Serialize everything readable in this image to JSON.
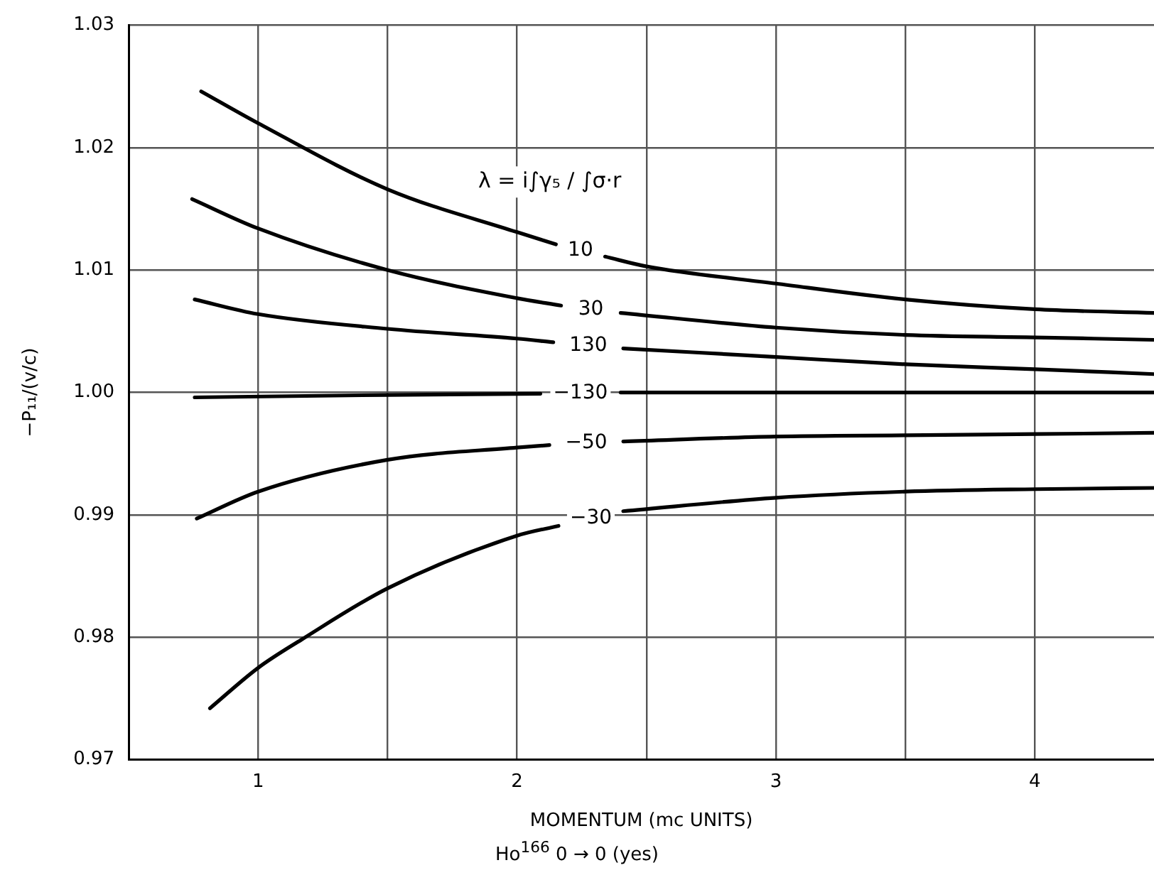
{
  "chart_data": {
    "type": "line",
    "xlabel": "MOMENTUM (mc UNITS)",
    "ylabel": "−P₁₁/(v/c)",
    "annotations": [
      "λ = i∫γ₅ / ∫σ·r",
      "Ho$^{166}$ 0 → 0 (yes)"
    ],
    "xlim": [
      0.5,
      4.46
    ],
    "xticks": [
      {
        "value": 0.5,
        "label": null
      },
      1,
      {
        "value": 1.5,
        "label": null
      },
      2,
      {
        "value": 2.5,
        "label": null
      },
      3,
      {
        "value": 3.5,
        "label": null
      },
      4
    ],
    "ylim": [
      0.97,
      1.03
    ],
    "yticks": [
      0.97,
      0.98,
      0.99,
      {
        "value": 1,
        "label": "1.00"
      },
      1.01,
      1.02,
      1.03
    ],
    "grid": true,
    "legend": false,
    "marker": "none",
    "line_style": "solid",
    "series": [
      {
        "name": "10",
        "color": "#000000",
        "x": [
          0.78,
          1.0,
          1.5,
          2.0,
          2.15,
          2.245,
          2.34,
          2.5,
          3.0,
          3.5,
          4.0,
          4.46
        ],
        "values": [
          1.0246,
          1.022,
          1.0166,
          1.0131,
          1.0121,
          null,
          1.0111,
          1.0103,
          1.0089,
          1.0076,
          1.0068,
          1.0065
        ]
      },
      {
        "name": "30",
        "color": "#000000",
        "x": [
          0.745,
          1.0,
          1.5,
          2.0,
          2.17,
          2.285,
          2.4,
          3.0,
          3.5,
          4.0,
          4.46
        ],
        "values": [
          1.0158,
          1.0134,
          1.01,
          1.0077,
          1.0071,
          null,
          1.0065,
          1.0053,
          1.0047,
          1.0045,
          1.0043
        ]
      },
      {
        "name": "130",
        "color": "#000000",
        "x": [
          0.755,
          1.0,
          1.5,
          2.0,
          2.14,
          2.275,
          2.41,
          3.0,
          3.5,
          4.0,
          4.46
        ],
        "values": [
          1.0076,
          1.0064,
          1.0052,
          1.0044,
          1.0041,
          null,
          1.0036,
          1.0029,
          1.0023,
          1.0019,
          1.0015
        ]
      },
      {
        "name": "−130",
        "color": "#000000",
        "x": [
          0.755,
          1.5,
          2.09,
          2.245,
          2.4,
          3.0,
          4.46
        ],
        "values": [
          0.9996,
          0.9998,
          0.9999,
          null,
          1.0,
          1.0,
          1.0
        ]
      },
      {
        "name": "−50",
        "color": "#000000",
        "x": [
          0.763,
          1.0,
          1.5,
          2.0,
          2.125,
          2.27,
          2.41,
          3.0,
          3.5,
          4.0,
          4.46
        ],
        "values": [
          0.9897,
          0.9919,
          0.9945,
          0.9955,
          0.9957,
          null,
          0.996,
          0.9964,
          0.9965,
          0.9966,
          0.9967
        ]
      },
      {
        "name": "−30",
        "color": "#000000",
        "x": [
          0.814,
          1.0,
          1.167,
          1.5,
          2.0,
          2.16,
          2.285,
          2.41,
          3.0,
          3.5,
          4.0,
          4.46
        ],
        "values": [
          0.9742,
          0.9775,
          0.9798,
          0.984,
          0.9883,
          0.9891,
          null,
          0.9903,
          0.9914,
          0.9919,
          0.9921,
          0.9922
        ]
      }
    ]
  }
}
